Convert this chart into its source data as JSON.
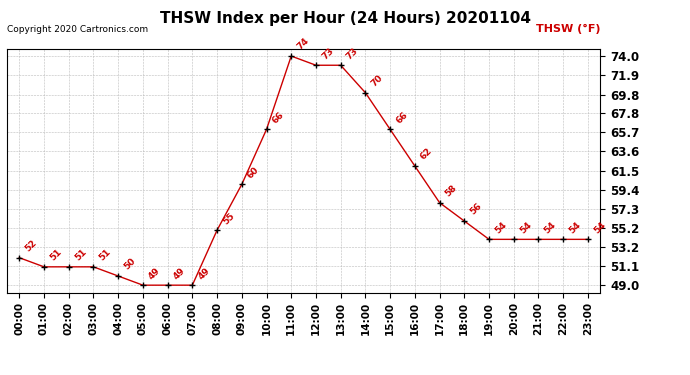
{
  "title": "THSW Index per Hour (24 Hours) 20201104",
  "copyright": "Copyright 2020 Cartronics.com",
  "legend_label": "THSW (°F)",
  "hours": [
    0,
    1,
    2,
    3,
    4,
    5,
    6,
    7,
    8,
    9,
    10,
    11,
    12,
    13,
    14,
    15,
    16,
    17,
    18,
    19,
    20,
    21,
    22,
    23
  ],
  "values": [
    52,
    51,
    51,
    51,
    50,
    49,
    49,
    49,
    55,
    60,
    66,
    74,
    73,
    73,
    70,
    66,
    62,
    58,
    56,
    54,
    54,
    54,
    54,
    54
  ],
  "x_labels": [
    "00:00",
    "01:00",
    "02:00",
    "03:00",
    "04:00",
    "05:00",
    "06:00",
    "07:00",
    "08:00",
    "09:00",
    "10:00",
    "11:00",
    "12:00",
    "13:00",
    "14:00",
    "15:00",
    "16:00",
    "17:00",
    "18:00",
    "19:00",
    "20:00",
    "21:00",
    "22:00",
    "23:00"
  ],
  "y_ticks": [
    49.0,
    51.1,
    53.2,
    55.2,
    57.3,
    59.4,
    61.5,
    63.6,
    65.7,
    67.8,
    69.8,
    71.9,
    74.0
  ],
  "ylim": [
    48.2,
    74.8
  ],
  "xlim": [
    -0.5,
    23.5
  ],
  "line_color": "#cc0000",
  "marker_color": "black",
  "label_color": "#cc0000",
  "title_color": "black",
  "grid_color": "#bbbbbb",
  "background_color": "white",
  "title_fontsize": 11,
  "copyright_fontsize": 6.5,
  "label_fontsize": 6.5,
  "tick_fontsize": 7.5,
  "legend_fontsize": 8,
  "ytick_fontsize": 8.5
}
